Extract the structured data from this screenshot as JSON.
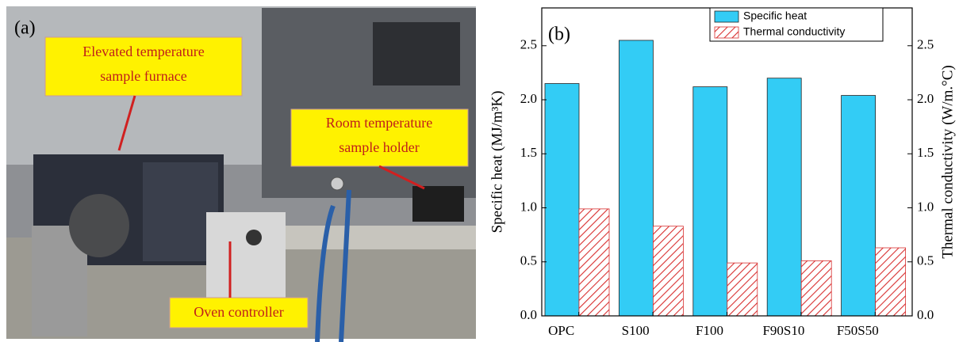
{
  "photo": {
    "panel_label": "(a)",
    "callouts": [
      {
        "lines": [
          "Elevated temperature",
          "sample furnace"
        ]
      },
      {
        "lines": [
          "Room temperature",
          "sample holder"
        ]
      },
      {
        "lines": [
          "Oven controller"
        ]
      }
    ]
  },
  "chart_data": {
    "type": "bar",
    "panel_label": "(b)",
    "y_label": "Specific heat (MJ/m³K)",
    "y2_label": "Thermal conductivity (W/m.°C)",
    "categories": [
      "OPC",
      "S100",
      "F100",
      "F90S10",
      "F50S50"
    ],
    "series": [
      {
        "name": "Specific heat",
        "color": "#33ccf5",
        "values": [
          2.15,
          2.55,
          2.12,
          2.2,
          2.04
        ]
      },
      {
        "name": "Thermal conductivity",
        "color": "#d83030",
        "hatch": true,
        "axis": "y2",
        "values": [
          0.99,
          0.83,
          0.49,
          0.51,
          0.63
        ]
      }
    ],
    "ylim": [
      0,
      2.85
    ],
    "y2lim": [
      0,
      2.85
    ],
    "yticks": [
      {
        "value": 0,
        "label": "0.0"
      },
      0.5,
      {
        "value": 1,
        "label": "1.0"
      },
      1.5,
      {
        "value": 2,
        "label": "2.0"
      },
      2.5
    ],
    "y2ticks": [
      {
        "value": 0,
        "label": "0.0"
      },
      0.5,
      {
        "value": 1,
        "label": "1.0"
      },
      1.5,
      {
        "value": 2,
        "label": "2.0"
      },
      2.5
    ],
    "legend": "top-right"
  }
}
